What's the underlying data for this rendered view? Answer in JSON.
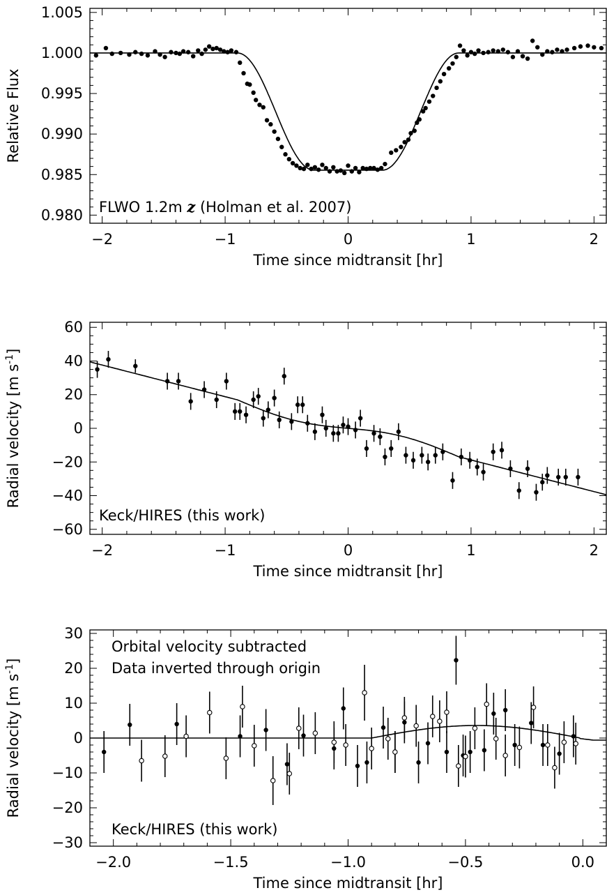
{
  "chart_data": [
    {
      "type": "scatter",
      "panel": "flux",
      "xlabel": "Time since midtransit [hr]",
      "ylabel": "Relative Flux",
      "xlim": [
        -2.1,
        2.1
      ],
      "ylim": [
        0.979,
        1.0055
      ],
      "xticks": [
        -2,
        -1,
        0,
        1,
        2
      ],
      "yticks": [
        0.98,
        0.985,
        0.99,
        0.995,
        1.0,
        1.005
      ],
      "annotation": "FLWO 1.2m z (Holman et al. 2007)",
      "annotation_parts": {
        "prefix": "FLWO 1.2m ",
        "band": "z",
        "suffix": " (Holman et al. 2007)"
      },
      "model": {
        "depth": 0.01445,
        "t1": 0.9,
        "t2": 0.28
      },
      "series": [
        {
          "marker": "filled",
          "x": [
            -2.05,
            -1.97,
            -1.92,
            -1.85,
            -1.78,
            -1.73,
            -1.68,
            -1.63,
            -1.57,
            -1.53,
            -1.49,
            -1.44,
            -1.4,
            -1.37,
            -1.34,
            -1.3,
            -1.26,
            -1.22,
            -1.19,
            -1.16,
            -1.13,
            -1.1,
            -1.07,
            -1.04,
            -1.01,
            -0.98,
            -0.95,
            -0.91,
            -0.88,
            -0.85,
            -0.82,
            -0.8,
            -0.77,
            -0.75,
            -0.72,
            -0.69,
            -0.66,
            -0.63,
            -0.6,
            -0.57,
            -0.54,
            -0.51,
            -0.48,
            -0.45,
            -0.42,
            -0.39,
            -0.36,
            -0.33,
            -0.3,
            -0.27,
            -0.24,
            -0.21,
            -0.18,
            -0.15,
            -0.12,
            -0.09,
            -0.06,
            -0.03,
            0.0,
            0.03,
            0.06,
            0.09,
            0.12,
            0.15,
            0.18,
            0.21,
            0.24,
            0.27,
            0.3,
            0.35,
            0.39,
            0.43,
            0.46,
            0.49,
            0.51,
            0.54,
            0.56,
            0.58,
            0.61,
            0.63,
            0.66,
            0.69,
            0.72,
            0.75,
            0.78,
            0.82,
            0.85,
            0.88,
            0.91,
            0.94,
            0.97,
            1.0,
            1.03,
            1.06,
            1.1,
            1.14,
            1.18,
            1.22,
            1.26,
            1.3,
            1.34,
            1.38,
            1.42,
            1.46,
            1.5,
            1.54,
            1.58,
            1.62,
            1.66,
            1.7,
            1.74,
            1.78,
            1.84,
            1.89,
            1.95,
            2.0,
            2.06
          ],
          "y": [
            0.9997,
            1.0006,
            0.9999,
            1.0,
            0.9998,
            1.0001,
            0.9999,
            0.9997,
            1.0002,
            0.9998,
            0.9995,
            1.0001,
            1.0,
            0.9999,
            1.0002,
            1.0001,
            0.9996,
            1.0003,
            0.9999,
            1.0004,
            1.0008,
            1.0005,
            1.0006,
            1.0004,
            1.0002,
            1.0001,
            1.0003,
            1.0001,
            0.9988,
            0.9975,
            0.9962,
            0.9961,
            0.9951,
            0.9942,
            0.9936,
            0.9933,
            0.9917,
            0.9912,
            0.9903,
            0.9894,
            0.9884,
            0.9875,
            0.9869,
            0.9864,
            0.9861,
            0.9858,
            0.9857,
            0.9862,
            0.9857,
            0.9859,
            0.9856,
            0.9862,
            0.9858,
            0.9854,
            0.9859,
            0.9854,
            0.9855,
            0.9852,
            0.9861,
            0.9854,
            0.9858,
            0.9853,
            0.9858,
            0.9857,
            0.9858,
            0.9858,
            0.9856,
            0.9858,
            0.9863,
            0.9877,
            0.988,
            0.9884,
            0.989,
            0.9893,
            0.9901,
            0.9904,
            0.9914,
            0.9918,
            0.9928,
            0.9932,
            0.994,
            0.9947,
            0.9957,
            0.9965,
            0.9974,
            0.9981,
            0.9987,
            0.9995,
            1.0009,
            1.0003,
            0.9997,
            1.0001,
            0.9999,
            1.0003,
            1.0,
            1.0001,
            1.0003,
            1.0002,
            1.0004,
            1.0001,
            0.9995,
            1.0002,
            0.9996,
            0.9993,
            1.0015,
            1.0007,
            0.9998,
            1.0002,
            1.0001,
            1.0004,
            1.0002,
            1.0004,
            1.0006,
            1.0008,
            1.0009,
            1.0007,
            1.0006
          ]
        }
      ]
    },
    {
      "type": "scatter",
      "panel": "rv",
      "xlabel": "Time since midtransit [hr]",
      "ylabel": "Radial velocity [m s⁻¹]",
      "ylabel_parts": {
        "main": "Radial velocity [m s",
        "sup": "-1",
        "close": "]"
      },
      "xlim": [
        -2.1,
        2.1
      ],
      "ylim": [
        -63,
        63
      ],
      "xticks": [
        -2,
        -1,
        0,
        1,
        2
      ],
      "yticks": [
        -60,
        -40,
        -20,
        0,
        20,
        40,
        60
      ],
      "annotation": "Keck/HIRES (this work)",
      "model": {
        "slope": -18.8,
        "rm_amp": 3.5
      },
      "series": [
        {
          "marker": "filled",
          "x": [
            -2.04,
            -1.95,
            -1.73,
            -1.47,
            -1.38,
            -1.28,
            -1.17,
            -1.07,
            -0.99,
            -0.92,
            -0.88,
            -0.83,
            -0.77,
            -0.73,
            -0.69,
            -0.65,
            -0.6,
            -0.56,
            -0.52,
            -0.46,
            -0.41,
            -0.37,
            -0.33,
            -0.27,
            -0.21,
            -0.18,
            -0.12,
            -0.08,
            -0.04,
            0.0,
            0.06,
            0.1,
            0.15,
            0.21,
            0.26,
            0.3,
            0.35,
            0.41,
            0.47,
            0.53,
            0.6,
            0.65,
            0.71,
            0.77,
            0.85,
            0.92,
            0.99,
            1.05,
            1.1,
            1.18,
            1.25,
            1.32,
            1.39,
            1.46,
            1.53,
            1.58,
            1.62,
            1.71,
            1.77,
            1.87
          ],
          "y": [
            35,
            41,
            37,
            28,
            28,
            16,
            23,
            17,
            28,
            10,
            10,
            8,
            17,
            19,
            6,
            11,
            18,
            5,
            31,
            4,
            14,
            14,
            3,
            -2,
            8,
            0,
            -3,
            -3,
            2,
            1,
            -1,
            6,
            -12,
            -3,
            -5,
            -17,
            -12,
            -2,
            -16,
            -19,
            -16,
            -20,
            -16,
            -14,
            -31,
            -17,
            -19,
            -23,
            -26,
            -14,
            -13,
            -24,
            -37,
            -24,
            -38,
            -32,
            -28,
            -29,
            -29,
            -29
          ],
          "err": [
            5,
            5,
            4,
            5,
            5,
            5,
            5,
            5,
            5,
            5,
            5,
            5,
            5,
            5,
            5,
            5,
            5,
            5,
            5,
            5,
            5,
            5,
            5,
            5,
            5,
            5,
            5,
            5,
            5,
            5,
            5,
            5,
            5,
            5,
            5,
            5,
            5,
            5,
            5,
            5,
            5,
            5,
            5,
            5,
            5,
            5,
            5,
            5,
            5,
            5,
            5,
            5,
            5,
            5,
            5,
            5,
            5,
            5,
            5,
            5
          ]
        }
      ]
    },
    {
      "type": "scatter",
      "panel": "residual",
      "xlabel": "Time since midtransit [hr]",
      "ylabel": "Radial velocity [m s⁻¹]",
      "ylabel_parts": {
        "main": "Radial velocity [m s",
        "sup": "-1",
        "close": "]"
      },
      "xlim": [
        -2.1,
        0.1
      ],
      "ylim": [
        -31,
        31
      ],
      "xticks": [
        -2.0,
        -1.5,
        -1.0,
        -0.5,
        0.0
      ],
      "xtick_labels": [
        "−2.0",
        "−1.5",
        "−1.0",
        "−0.5",
        "0.0"
      ],
      "yticks": [
        -30,
        -20,
        -10,
        0,
        10,
        20,
        30
      ],
      "annotations": [
        "Orbital velocity subtracted",
        "Data inverted through origin",
        "Keck/HIRES (this work)"
      ],
      "model": {
        "t1": -0.9,
        "t2": -0.03,
        "peak_x": -0.46,
        "peak_y": 3.6
      },
      "series": [
        {
          "marker": "filled",
          "x": [
            -2.04,
            -1.93,
            -1.73,
            -1.46,
            -1.35,
            -1.26,
            -1.19,
            -1.06,
            -1.02,
            -0.96,
            -0.92,
            -0.85,
            -0.8,
            -0.76,
            -0.7,
            -0.66,
            -0.58,
            -0.54,
            -0.51,
            -0.48,
            -0.42,
            -0.38,
            -0.33,
            -0.29,
            -0.22,
            -0.17,
            -0.1,
            -0.04
          ],
          "y": [
            -4,
            3.8,
            4,
            0.5,
            2.3,
            -7.5,
            0.7,
            -3,
            8.5,
            -8,
            -7,
            3,
            -4,
            4.5,
            -7,
            -1.5,
            -4,
            22.3,
            -5,
            -4,
            -3.5,
            7,
            8,
            -2,
            4.3,
            -2,
            -4.5,
            0.5
          ],
          "err": [
            6,
            6,
            6,
            6,
            6,
            6,
            6,
            6,
            6,
            6,
            6,
            6,
            6,
            6,
            6,
            6,
            6,
            7,
            6,
            6,
            6,
            6,
            6,
            6,
            6,
            6,
            6,
            6
          ]
        },
        {
          "marker": "open",
          "x": [
            -1.88,
            -1.78,
            -1.69,
            -1.59,
            -1.52,
            -1.45,
            -1.4,
            -1.32,
            -1.25,
            -1.21,
            -1.14,
            -1.06,
            -1.01,
            -0.93,
            -0.9,
            -0.83,
            -0.8,
            -0.76,
            -0.71,
            -0.64,
            -0.61,
            -0.58,
            -0.53,
            -0.5,
            -0.46,
            -0.41,
            -0.37,
            -0.33,
            -0.27,
            -0.21,
            -0.15,
            -0.12,
            -0.08,
            -0.03
          ],
          "y": [
            -6.5,
            -5.2,
            0.5,
            7.3,
            -5.8,
            9,
            -2.2,
            -12.2,
            -10.2,
            2.8,
            1.4,
            -1.2,
            -2,
            13,
            -3,
            -0.2,
            -4,
            5.8,
            3.5,
            6.2,
            4.8,
            7.4,
            -8,
            -5.3,
            2.8,
            9.7,
            -0.2,
            -5,
            -2.7,
            8.8,
            -2,
            -8.5,
            -1.2,
            -1.6
          ],
          "err": [
            6,
            6,
            6,
            6,
            6,
            6,
            6,
            7,
            6,
            6,
            6,
            6,
            6,
            8,
            6,
            6,
            6,
            6,
            6,
            6,
            6,
            6,
            6,
            6,
            6,
            6,
            6,
            6,
            6,
            6,
            6,
            6,
            6,
            6
          ]
        }
      ]
    }
  ]
}
